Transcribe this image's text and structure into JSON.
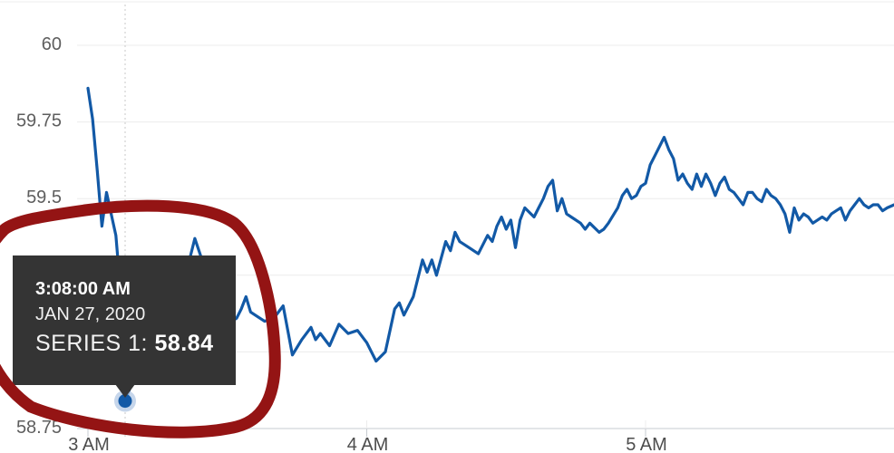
{
  "chart_data": {
    "type": "line",
    "title": "",
    "xlabel": "",
    "ylabel": "",
    "x_ticks": [
      "3 AM",
      "4 AM",
      "5 AM"
    ],
    "x_tick_minutes": [
      0,
      60,
      120
    ],
    "y_ticks": [
      60,
      59.75,
      59.5,
      59.25,
      59,
      58.75
    ],
    "ylim": [
      58.75,
      60.12
    ],
    "grid": "horizontal",
    "legend": "none",
    "series": [
      {
        "name": "Series 1",
        "date": "Jan 27, 2020",
        "points_min_after_3am_vs_price": [
          [
            0,
            59.86
          ],
          [
            1,
            59.76
          ],
          [
            2,
            59.59
          ],
          [
            3,
            59.41
          ],
          [
            4,
            59.52
          ],
          [
            5,
            59.45
          ],
          [
            6,
            59.38
          ],
          [
            7,
            59.2
          ],
          [
            8,
            58.84
          ],
          [
            10,
            58.92
          ],
          [
            12,
            58.97
          ],
          [
            14,
            59.02
          ],
          [
            16,
            59.08
          ],
          [
            18,
            59.15
          ],
          [
            20,
            59.24
          ],
          [
            22,
            59.31
          ],
          [
            23,
            59.37
          ],
          [
            25,
            59.28
          ],
          [
            27,
            59.18
          ],
          [
            29,
            59.13
          ],
          [
            31,
            59.1
          ],
          [
            32,
            59.11
          ],
          [
            33,
            59.14
          ],
          [
            34,
            59.18
          ],
          [
            35,
            59.13
          ],
          [
            36,
            59.12
          ],
          [
            38,
            59.1
          ],
          [
            40,
            59.11
          ],
          [
            42,
            59.15
          ],
          [
            44,
            58.99
          ],
          [
            46,
            59.04
          ],
          [
            48,
            59.08
          ],
          [
            49,
            59.04
          ],
          [
            50,
            59.06
          ],
          [
            52,
            59.02
          ],
          [
            54,
            59.09
          ],
          [
            56,
            59.06
          ],
          [
            58,
            59.07
          ],
          [
            60,
            59.03
          ],
          [
            62,
            58.97
          ],
          [
            64,
            59.0
          ],
          [
            66,
            59.14
          ],
          [
            67,
            59.16
          ],
          [
            68,
            59.12
          ],
          [
            70,
            59.18
          ],
          [
            72,
            59.3
          ],
          [
            73,
            59.26
          ],
          [
            74,
            59.3
          ],
          [
            75,
            59.25
          ],
          [
            77,
            59.36
          ],
          [
            78,
            59.33
          ],
          [
            79,
            59.39
          ],
          [
            80,
            59.36
          ],
          [
            82,
            59.34
          ],
          [
            84,
            59.32
          ],
          [
            86,
            59.38
          ],
          [
            87,
            59.36
          ],
          [
            88,
            59.41
          ],
          [
            89,
            59.44
          ],
          [
            90,
            59.4
          ],
          [
            91,
            59.43
          ],
          [
            92,
            59.34
          ],
          [
            93,
            59.43
          ],
          [
            94,
            59.47
          ],
          [
            96,
            59.44
          ],
          [
            97,
            59.47
          ],
          [
            98,
            59.5
          ],
          [
            99,
            59.54
          ],
          [
            100,
            59.56
          ],
          [
            101,
            59.46
          ],
          [
            102,
            59.5
          ],
          [
            103,
            59.45
          ],
          [
            104,
            59.44
          ],
          [
            106,
            59.42
          ],
          [
            107,
            59.4
          ],
          [
            108,
            59.42
          ],
          [
            110,
            59.39
          ],
          [
            111,
            59.4
          ],
          [
            112,
            59.42
          ],
          [
            114,
            59.47
          ],
          [
            115,
            59.51
          ],
          [
            116,
            59.53
          ],
          [
            117,
            59.5
          ],
          [
            118,
            59.51
          ],
          [
            119,
            59.54
          ],
          [
            120,
            59.55
          ],
          [
            121,
            59.61
          ],
          [
            122,
            59.64
          ],
          [
            123,
            59.67
          ],
          [
            124,
            59.7
          ],
          [
            125,
            59.66
          ],
          [
            126,
            59.63
          ],
          [
            127,
            59.56
          ],
          [
            128,
            59.58
          ],
          [
            129,
            59.55
          ],
          [
            130,
            59.53
          ],
          [
            131,
            59.58
          ],
          [
            132,
            59.54
          ],
          [
            133,
            59.58
          ],
          [
            134,
            59.55
          ],
          [
            135,
            59.51
          ],
          [
            136,
            59.55
          ],
          [
            137,
            59.57
          ],
          [
            138,
            59.53
          ],
          [
            139,
            59.52
          ],
          [
            140,
            59.5
          ],
          [
            141,
            59.48
          ],
          [
            142,
            59.52
          ],
          [
            143,
            59.52
          ],
          [
            144,
            59.5
          ],
          [
            145,
            59.49
          ],
          [
            146,
            59.53
          ],
          [
            147,
            59.51
          ],
          [
            148,
            59.5
          ],
          [
            149,
            59.48
          ],
          [
            150,
            59.45
          ],
          [
            151,
            59.39
          ],
          [
            152,
            59.47
          ],
          [
            153,
            59.43
          ],
          [
            154,
            59.45
          ],
          [
            155,
            59.44
          ],
          [
            156,
            59.42
          ],
          [
            157,
            59.43
          ],
          [
            158,
            59.44
          ],
          [
            159,
            59.43
          ],
          [
            160,
            59.45
          ],
          [
            161,
            59.46
          ],
          [
            162,
            59.47
          ],
          [
            163,
            59.43
          ],
          [
            164,
            59.46
          ],
          [
            165,
            59.48
          ],
          [
            166,
            59.5
          ],
          [
            167,
            59.48
          ],
          [
            168,
            59.47
          ],
          [
            169,
            59.48
          ],
          [
            170,
            59.48
          ],
          [
            171,
            59.46
          ],
          [
            172,
            59.47
          ],
          [
            173.5,
            59.48
          ]
        ]
      }
    ],
    "marked_point": {
      "minutes_after_3am": 8,
      "value": 58.84
    }
  },
  "tooltip": {
    "time": "3:08:00 AM",
    "date": "JAN 27, 2020",
    "series_label": "SERIES 1: ",
    "series_value": "58.84"
  },
  "annotation": {
    "type": "hand-drawn red circle",
    "encircles": "tooltip and marked data point",
    "color": "#941414"
  },
  "colors": {
    "line": "#1259a6",
    "marker": "#1259a6",
    "marker_halo": "#b3c8e4",
    "tooltip_bg": "#343434",
    "tooltip_text": "#ffffff",
    "grid": "#ececec",
    "axis": "#c7cbd1",
    "tick": "#c7cbd1",
    "crosshair": "#c9c9c9",
    "y_label": "#5e5e5e",
    "x_label": "#4d4d4d",
    "annotation": "#941414",
    "top_border": "#ededed"
  }
}
